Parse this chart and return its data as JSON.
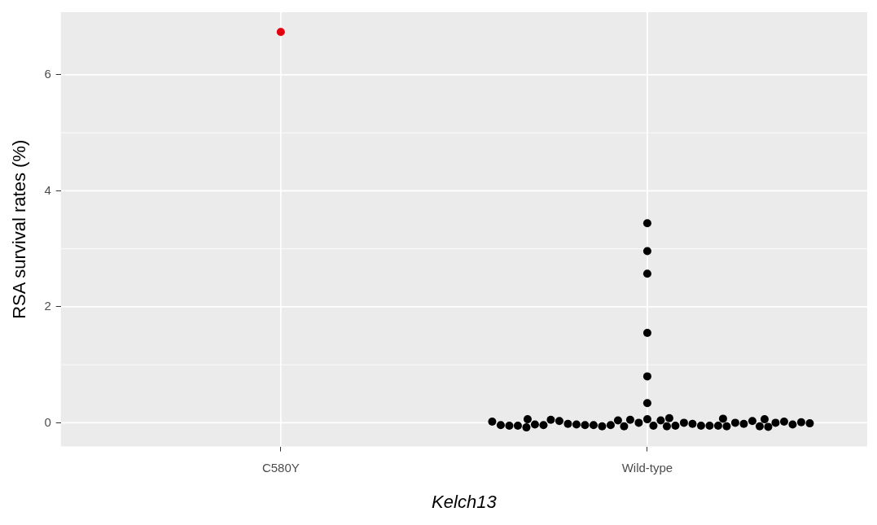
{
  "chart_data": {
    "type": "scatter",
    "xlabel": "Kelch13",
    "ylabel": "RSA survival rates (%)",
    "categories": [
      "C580Y",
      "Wild-type"
    ],
    "ylim": [
      -0.41,
      7.08
    ],
    "yticks": [
      0,
      2,
      4,
      6
    ],
    "grid": true,
    "legend": false,
    "marker": "circle",
    "series": [
      {
        "color": "#e3000f",
        "x": [
          "C580Y"
        ],
        "values": [
          6.74
        ]
      },
      {
        "color": "#000000",
        "x": [
          "Wild-type",
          "Wild-type",
          "Wild-type",
          "Wild-type",
          "Wild-type",
          "Wild-type",
          "Wild-type",
          "Wild-type",
          "Wild-type",
          "Wild-type",
          "Wild-type",
          "Wild-type",
          "Wild-type",
          "Wild-type",
          "Wild-type",
          "Wild-type",
          "Wild-type",
          "Wild-type",
          "Wild-type",
          "Wild-type",
          "Wild-type",
          "Wild-type",
          "Wild-type",
          "Wild-type",
          "Wild-type",
          "Wild-type",
          "Wild-type",
          "Wild-type",
          "Wild-type",
          "Wild-type",
          "Wild-type",
          "Wild-type",
          "Wild-type",
          "Wild-type",
          "Wild-type",
          "Wild-type",
          "Wild-type",
          "Wild-type",
          "Wild-type",
          "Wild-type",
          "Wild-type",
          "Wild-type",
          "Wild-type",
          "Wild-type",
          "Wild-type",
          "Wild-type",
          "Wild-type",
          "Wild-type",
          "Wild-type",
          "Wild-type"
        ],
        "values": [
          3.44,
          2.96,
          2.57,
          1.55,
          0.8,
          0.34,
          0.06,
          -0.05,
          0.0,
          0.04,
          0.05,
          -0.06,
          -0.06,
          -0.05,
          0.04,
          0.0,
          -0.04,
          -0.02,
          -0.06,
          -0.05,
          -0.04,
          -0.05,
          -0.04,
          -0.05,
          -0.03,
          -0.06,
          -0.02,
          0.0,
          0.03,
          0.08,
          -0.02,
          0.05,
          0.03,
          -0.04,
          -0.03,
          -0.06,
          -0.07,
          0.06,
          -0.08,
          0.0,
          -0.05,
          0.02,
          0.06,
          0.07,
          -0.05,
          -0.03,
          -0.04,
          0.01,
          0.02,
          -0.01
        ]
      }
    ]
  }
}
